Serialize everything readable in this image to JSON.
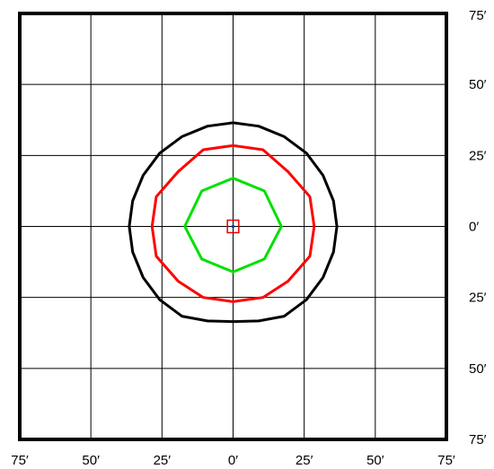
{
  "chart_data": {
    "type": "contour",
    "x_tick_labels": [
      "75′",
      "50′",
      "25′",
      "0′",
      "25′",
      "50′",
      "75′"
    ],
    "y_tick_labels": [
      "75′",
      "50′",
      "25′",
      "0′",
      "25′",
      "50′",
      "75′"
    ],
    "x_range_ft": [
      -75,
      75
    ],
    "y_range_ft": [
      -75,
      75
    ],
    "grid_step_ft": 25,
    "grid": true,
    "center_marker": {
      "x": 0,
      "y": 0,
      "size_ft": 2.5,
      "color": "#e00000",
      "dot_color": "#1a3aa8"
    },
    "contours": [
      {
        "color": "#000000",
        "points": [
          [
            0,
            36.5
          ],
          [
            9,
            35.3
          ],
          [
            18,
            31.6
          ],
          [
            25.8,
            25.8
          ],
          [
            31.6,
            18
          ],
          [
            35.3,
            9
          ],
          [
            36.5,
            0
          ],
          [
            35.3,
            -9
          ],
          [
            31.6,
            -18
          ],
          [
            25.8,
            -25.8
          ],
          [
            18,
            -31.6
          ],
          [
            9,
            -33.3
          ],
          [
            0,
            -33.5
          ],
          [
            -9,
            -33.3
          ],
          [
            -18,
            -31.6
          ],
          [
            -25.8,
            -25.8
          ],
          [
            -31.6,
            -18
          ],
          [
            -35.3,
            -9
          ],
          [
            -36.5,
            0
          ],
          [
            -35.3,
            9
          ],
          [
            -31.6,
            18
          ],
          [
            -25.8,
            25.8
          ],
          [
            -18,
            31.6
          ],
          [
            -9,
            35.3
          ]
        ]
      },
      {
        "color": "#ff0000",
        "points": [
          [
            0,
            28.5
          ],
          [
            10.5,
            27
          ],
          [
            19.3,
            19.3
          ],
          [
            27,
            10.5
          ],
          [
            28.5,
            0
          ],
          [
            27,
            -10.5
          ],
          [
            19.3,
            -19.3
          ],
          [
            10.5,
            -25
          ],
          [
            0,
            -26.5
          ],
          [
            -10.5,
            -25
          ],
          [
            -19.3,
            -19.3
          ],
          [
            -27,
            -10.5
          ],
          [
            -28.5,
            0
          ],
          [
            -27,
            10.5
          ],
          [
            -19.3,
            19.3
          ],
          [
            -10.5,
            27
          ]
        ]
      },
      {
        "color": "#00e000",
        "points": [
          [
            0,
            17
          ],
          [
            11,
            12.5
          ],
          [
            17,
            0
          ],
          [
            11,
            -11.5
          ],
          [
            0,
            -16
          ],
          [
            -11,
            -11.5
          ],
          [
            -17,
            0
          ],
          [
            -11,
            12.5
          ]
        ]
      }
    ]
  }
}
